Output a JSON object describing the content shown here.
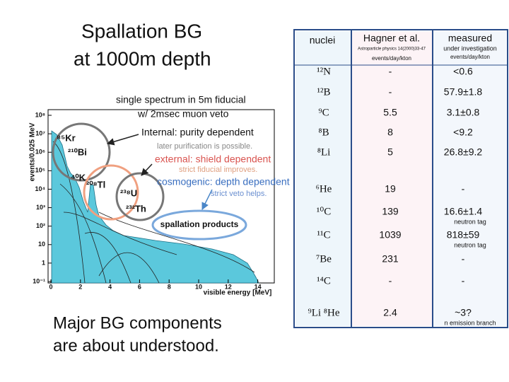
{
  "title": [
    "Spallation BG",
    "at 1000m depth"
  ],
  "footer": [
    "Major BG components",
    "are about understood."
  ],
  "plot": {
    "type": "line",
    "ylabel": "events/0.025 MeV",
    "xlabel": "visible energy [MeV]",
    "log_y": true,
    "xlim": [
      0,
      15
    ],
    "xticks": [
      0,
      2,
      4,
      6,
      8,
      10,
      12,
      14
    ],
    "ylim": [
      0.1,
      100000000
    ],
    "yticks": [
      {
        "value": 0.1,
        "label": "10⁻¹"
      },
      {
        "value": 1,
        "label": "1"
      },
      {
        "value": 10,
        "label": "10"
      },
      {
        "value": 100,
        "label": "10²"
      },
      {
        "value": 1000,
        "label": "10³"
      },
      {
        "value": 10000,
        "label": "10⁴"
      },
      {
        "value": 100000,
        "label": "10⁵"
      },
      {
        "value": 1000000,
        "label": "10⁶"
      },
      {
        "value": 10000000,
        "label": "10⁷"
      },
      {
        "value": 100000000,
        "label": "10⁸"
      }
    ],
    "annotations": {
      "spectrum": [
        "single spectrum in 5m fiducial",
        "w/ 2msec muon veto"
      ],
      "internal": "Internal: purity dependent",
      "internal_note": "later purification is possible.",
      "external": "external: shield dependent",
      "external_note": "strict fiducial improves.",
      "cosmogenic": "cosmogenic: depth dependent",
      "cosmogenic_note": "strict veto helps.",
      "spallation": "spallation products",
      "isotopes": [
        "⁸⁵Kr",
        "²¹⁰Bi",
        "⁴⁰K",
        "²⁰⁸Tl",
        "²³⁸U",
        "²³²Th"
      ]
    }
  },
  "table": {
    "header": [
      [
        "nuclei"
      ],
      [
        "Hagner et al.",
        "Astroparticle physics 14(2000)33-47",
        "events/day/kton"
      ],
      [
        "measured",
        "under investigation",
        "events/day/kton"
      ]
    ],
    "rows": [
      {
        "nuclei": "¹²N",
        "hagner": "-",
        "measured": "<0.6"
      },
      {
        "nuclei": "¹²B",
        "hagner": "-",
        "measured": "57.9±1.8"
      },
      {
        "nuclei": "⁹C",
        "hagner": "5.5",
        "measured": "3.1±0.8"
      },
      {
        "nuclei": "⁸B",
        "hagner": "8",
        "measured": "<9.2"
      },
      {
        "nuclei": "⁸Li",
        "hagner": "5",
        "measured": "26.8±9.2"
      },
      {
        "nuclei": "⁶He",
        "hagner": "19",
        "measured": "-"
      },
      {
        "nuclei": "¹⁰C",
        "hagner": "139",
        "measured": "16.6±1.4",
        "note": "neutron tag"
      },
      {
        "nuclei": "¹¹C",
        "hagner": "1039",
        "measured": "818±59",
        "note": "neutron tag"
      },
      {
        "nuclei": "⁷Be",
        "hagner": "231",
        "measured": "-"
      },
      {
        "nuclei": "¹⁴C",
        "hagner": "-",
        "measured": "-"
      },
      {
        "nuclei": "⁹Li ⁸He",
        "hagner": "2.4",
        "measured": "~3?",
        "note": "n emission branch"
      }
    ]
  }
}
